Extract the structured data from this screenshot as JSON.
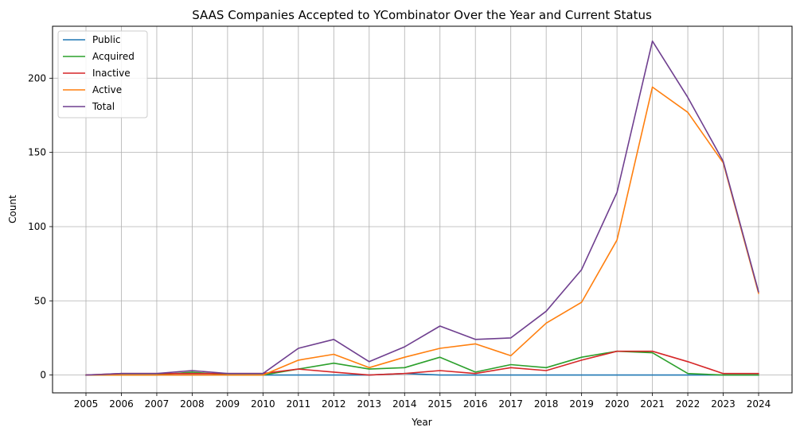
{
  "chart_data": {
    "type": "line",
    "title": "SAAS Companies Accepted to YCombinator Over the Year and Current Status",
    "xlabel": "Year",
    "ylabel": "Count",
    "x": [
      2005,
      2006,
      2007,
      2008,
      2009,
      2010,
      2011,
      2012,
      2013,
      2014,
      2015,
      2016,
      2017,
      2018,
      2019,
      2020,
      2021,
      2022,
      2023,
      2024
    ],
    "ylim": [
      -12,
      235
    ],
    "yticks": [
      0,
      50,
      100,
      150,
      200
    ],
    "grid": true,
    "legend_position": "top-left",
    "series": [
      {
        "name": "Public",
        "color": "#1f77b4",
        "values": [
          0,
          0,
          0,
          0,
          0,
          0,
          0,
          0,
          0,
          1,
          0,
          0,
          0,
          0,
          0,
          0,
          0,
          0,
          0,
          0
        ]
      },
      {
        "name": "Acquired",
        "color": "#2ca02c",
        "values": [
          0,
          0,
          0,
          2,
          0,
          0,
          4,
          8,
          4,
          5,
          12,
          2,
          7,
          5,
          12,
          16,
          15,
          1,
          0,
          0
        ]
      },
      {
        "name": "Inactive",
        "color": "#d62728",
        "values": [
          0,
          1,
          1,
          1,
          1,
          1,
          4,
          2,
          0,
          1,
          3,
          1,
          5,
          3,
          10,
          16,
          16,
          9,
          1,
          1
        ]
      },
      {
        "name": "Active",
        "color": "#ff7f0e",
        "values": [
          0,
          0,
          0,
          0,
          0,
          0,
          10,
          14,
          5,
          12,
          18,
          21,
          13,
          35,
          49,
          91,
          194,
          177,
          143,
          55
        ]
      },
      {
        "name": "Total",
        "color": "#6f3f8f",
        "values": [
          0,
          1,
          1,
          3,
          1,
          1,
          18,
          24,
          9,
          19,
          33,
          24,
          25,
          43,
          71,
          123,
          225,
          187,
          144,
          56
        ]
      }
    ]
  }
}
